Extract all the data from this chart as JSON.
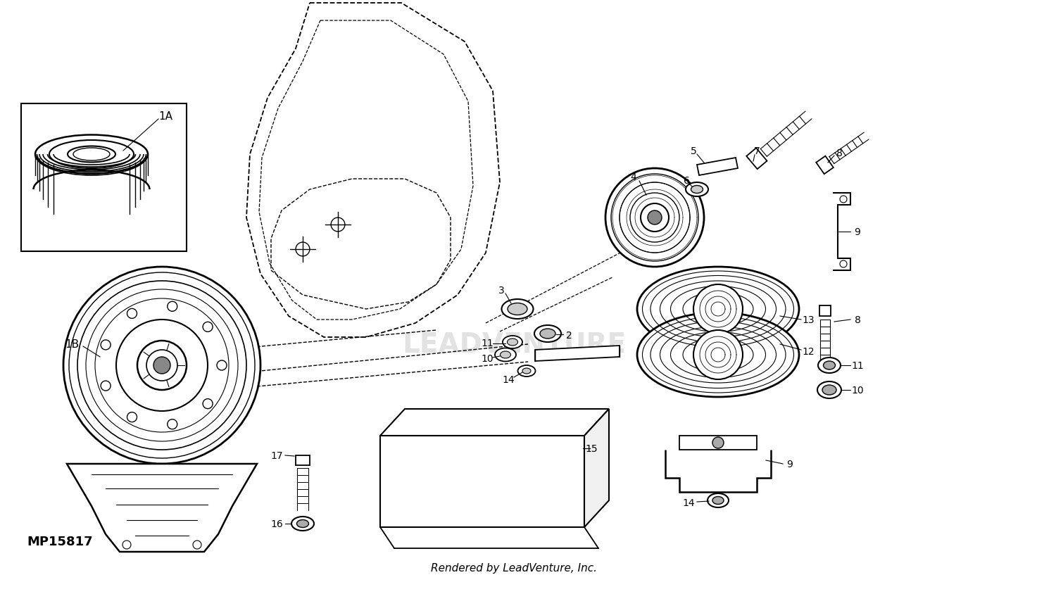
{
  "title": "",
  "footer": "Rendered by LeadVenture, Inc.",
  "part_number": "MP15817",
  "bg_color": "#ffffff",
  "line_color": "#000000",
  "figsize": [
    15.0,
    8.45
  ],
  "dpi": 100
}
